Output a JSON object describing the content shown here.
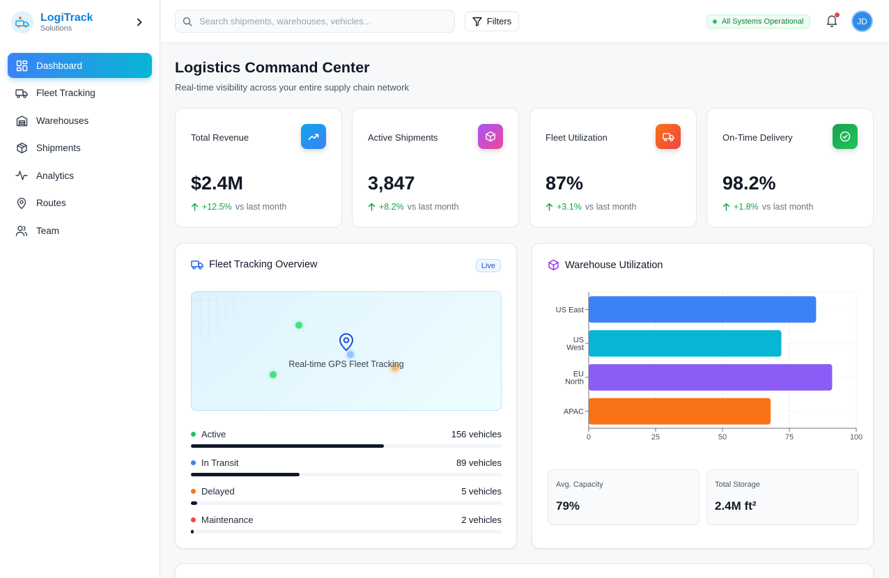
{
  "brand": {
    "name": "LogiTrack",
    "subtitle": "Solutions"
  },
  "nav": [
    {
      "label": "Dashboard",
      "icon": "dashboard-grid-icon",
      "active": true
    },
    {
      "label": "Fleet Tracking",
      "icon": "truck-icon",
      "active": false
    },
    {
      "label": "Warehouses",
      "icon": "warehouse-icon",
      "active": false
    },
    {
      "label": "Shipments",
      "icon": "package-icon",
      "active": false
    },
    {
      "label": "Analytics",
      "icon": "activity-icon",
      "active": false
    },
    {
      "label": "Routes",
      "icon": "map-pin-icon",
      "active": false
    },
    {
      "label": "Team",
      "icon": "users-icon",
      "active": false
    }
  ],
  "topbar": {
    "search_placeholder": "Search shipments, warehouses, vehicles...",
    "filters_label": "Filters",
    "status": "All Systems Operational",
    "avatar_initials": "JD"
  },
  "page": {
    "title": "Logistics Command Center",
    "subtitle": "Real-time visibility across your entire supply chain network"
  },
  "kpis": [
    {
      "label": "Total Revenue",
      "value": "$2.4M",
      "change": "+12.5%",
      "compare": "vs last month",
      "icon": "trending-up-icon",
      "color_from": "#0ea5e9",
      "color_to": "#3b82f6"
    },
    {
      "label": "Active Shipments",
      "value": "3,847",
      "change": "+8.2%",
      "compare": "vs last month",
      "icon": "package-icon",
      "color_from": "#a855f7",
      "color_to": "#ec4899"
    },
    {
      "label": "Fleet Utilization",
      "value": "87%",
      "change": "+3.1%",
      "compare": "vs last month",
      "icon": "truck-icon",
      "color_from": "#f97316",
      "color_to": "#ef4444"
    },
    {
      "label": "On-Time Delivery",
      "value": "98.2%",
      "change": "+1.8%",
      "compare": "vs last month",
      "icon": "check-circle-icon",
      "color_from": "#16a34a",
      "color_to": "#22c55e"
    }
  ],
  "fleet": {
    "title": "Fleet Tracking Overview",
    "badge": "Live",
    "map_label": "Real-time GPS Fleet Tracking",
    "statuses": [
      {
        "name": "Active",
        "count": "156 vehicles",
        "color": "#22c55e",
        "fraction": 0.62
      },
      {
        "name": "In Transit",
        "count": "89 vehicles",
        "color": "#3b82f6",
        "fraction": 0.35
      },
      {
        "name": "Delayed",
        "count": "5 vehicles",
        "color": "#f97316",
        "fraction": 0.02
      },
      {
        "name": "Maintenance",
        "count": "2 vehicles",
        "color": "#ef4444",
        "fraction": 0.01
      }
    ]
  },
  "warehouse": {
    "title": "Warehouse Utilization",
    "stats": [
      {
        "label": "Avg. Capacity",
        "value": "79%"
      },
      {
        "label": "Total Storage",
        "value": "2.4M ft²"
      }
    ]
  },
  "chart_data": {
    "type": "bar",
    "orientation": "horizontal",
    "categories": [
      "US East",
      "US West",
      "EU North",
      "APAC"
    ],
    "category_lines": [
      [
        "US East"
      ],
      [
        "US",
        "West"
      ],
      [
        "EU",
        "North"
      ],
      [
        "APAC"
      ]
    ],
    "values": [
      85,
      72,
      91,
      68
    ],
    "colors": [
      "#3b82f6",
      "#06b6d4",
      "#8b5cf6",
      "#f97316"
    ],
    "xlim": [
      0,
      100
    ],
    "xticks": [
      0,
      25,
      50,
      75,
      100
    ],
    "grid": true
  }
}
